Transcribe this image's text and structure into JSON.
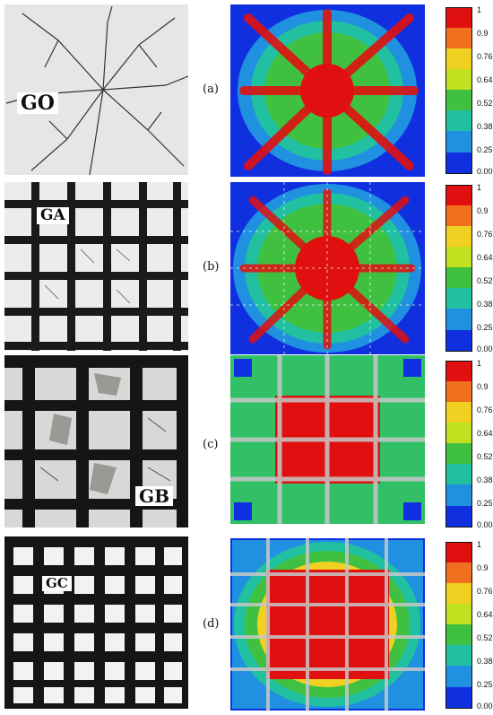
{
  "panels": [
    {
      "caption": "(a)",
      "specimen": "GO",
      "grid": "none"
    },
    {
      "caption": "(b)",
      "specimen": "GA",
      "grid": "square"
    },
    {
      "caption": "(c)",
      "specimen": "GB",
      "grid": "wide"
    },
    {
      "caption": "(d)",
      "specimen": "GC",
      "grid": "square"
    }
  ],
  "colorbar": {
    "ticks": [
      "1",
      "0.9",
      "0.76",
      "0.64",
      "0.52",
      "0.38",
      "0.25",
      "0.00"
    ],
    "colors": [
      "#e01010",
      "#f07020",
      "#f0d020",
      "#c0e020",
      "#40c040",
      "#20c0a0",
      "#2090e0",
      "#1030e0"
    ]
  }
}
